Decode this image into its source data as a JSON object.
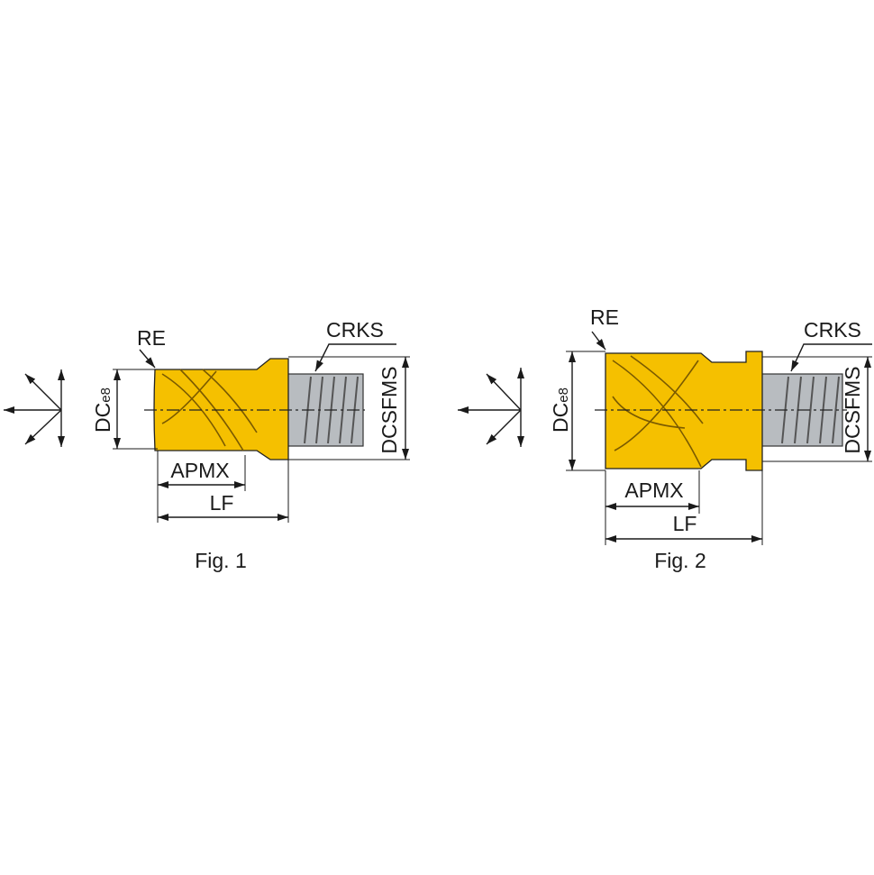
{
  "figures": [
    {
      "re": "RE",
      "crks": "CRKS",
      "dc": "DC",
      "dc_tolerance": "e8",
      "dcsfms": "DCSFMS",
      "apmx": "APMX",
      "lf": "LF",
      "caption": "Fig. 1"
    },
    {
      "re": "RE",
      "crks": "CRKS",
      "dc": "DC",
      "dc_tolerance": "e8",
      "dcsfms": "DCSFMS",
      "apmx": "APMX",
      "lf": "LF",
      "caption": "Fig. 2"
    }
  ]
}
